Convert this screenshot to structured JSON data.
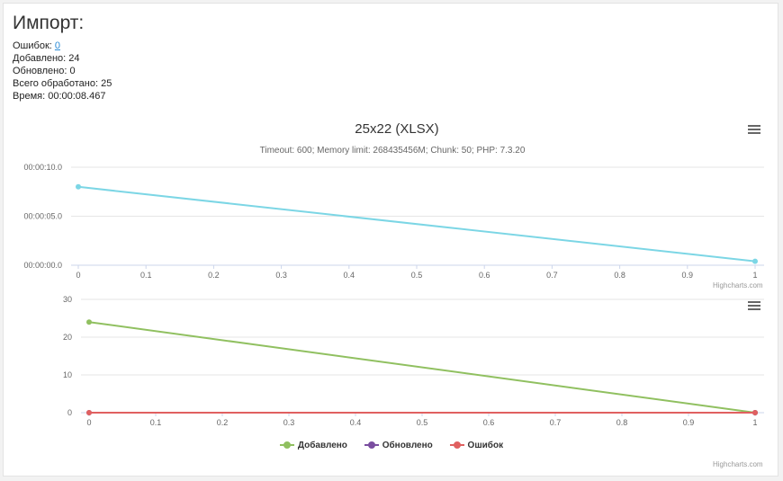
{
  "header": {
    "title": "Импорт:",
    "stats": [
      {
        "label": "Ошибок: ",
        "value": "0",
        "link": true
      },
      {
        "label": "Добавлено: ",
        "value": "24",
        "link": false
      },
      {
        "label": "Обновлено: ",
        "value": "0",
        "link": false
      },
      {
        "label": "Всего обработано: ",
        "value": "25",
        "link": false
      },
      {
        "label": "Время: ",
        "value": "00:00:08.467",
        "link": false
      }
    ]
  },
  "credits": "Highcharts.com",
  "icons": {
    "menu": "hamburger-menu-icon"
  },
  "chart_data": [
    {
      "type": "line",
      "title": "25x22 (XLSX)",
      "subtitle": "Timeout: 600; Memory limit: 268435456M; Chunk: 50; PHP: 7.3.20",
      "x": [
        0,
        1
      ],
      "xticks": [
        "0",
        "0.1",
        "0.2",
        "0.3",
        "0.4",
        "0.5",
        "0.6",
        "0.7",
        "0.8",
        "0.9",
        "1"
      ],
      "yticks": [
        "00:00:00.0",
        "00:00:05.0",
        "00:00:10.0"
      ],
      "ylim": [
        0,
        10
      ],
      "xlim": [
        0,
        1
      ],
      "grid": true,
      "series": [
        {
          "values": [
            8.0,
            0.4
          ],
          "color": "#7cd6e5"
        }
      ]
    },
    {
      "type": "line",
      "x": [
        0,
        1
      ],
      "xticks": [
        "0",
        "0.1",
        "0.2",
        "0.3",
        "0.4",
        "0.5",
        "0.6",
        "0.7",
        "0.8",
        "0.9",
        "1"
      ],
      "yticks": [
        "0",
        "10",
        "20",
        "30"
      ],
      "ylim": [
        0,
        30
      ],
      "xlim": [
        0,
        1
      ],
      "grid": true,
      "legend_position": "bottom-center",
      "series": [
        {
          "name": "Добавлено",
          "values": [
            24,
            0
          ],
          "color": "#90c060"
        },
        {
          "name": "Обновлено",
          "values": [
            0,
            0
          ],
          "color": "#7a4ea0"
        },
        {
          "name": "Ошибок",
          "values": [
            0,
            0
          ],
          "color": "#e06060"
        }
      ]
    }
  ]
}
